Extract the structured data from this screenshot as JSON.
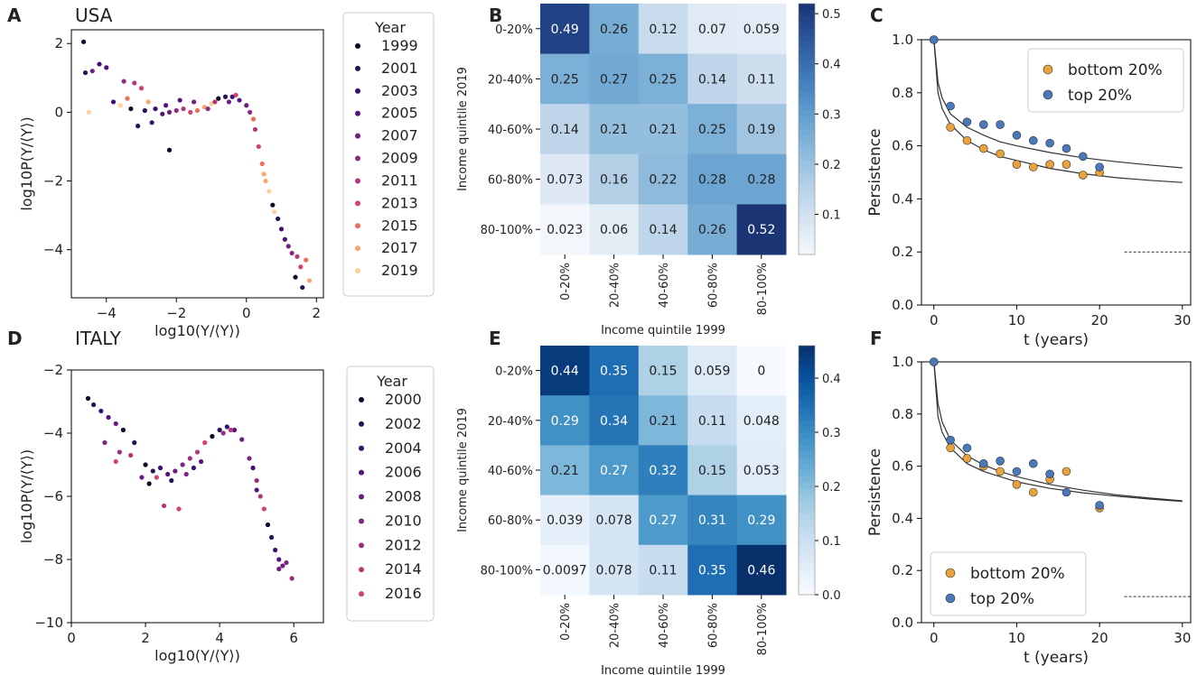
{
  "figure": {
    "panel_letters": [
      "A",
      "B",
      "C",
      "D",
      "E",
      "F"
    ]
  },
  "chart_data": [
    {
      "id": "A",
      "type": "scatter",
      "title": "USA",
      "xlabel": "log10(Y/⟨Y⟩)",
      "ylabel": "log10P(Y/⟨Y⟩)",
      "xlim": [
        -5,
        2.2
      ],
      "ylim": [
        -5.4,
        2.4
      ],
      "xticks": [
        -4,
        -2,
        0,
        2
      ],
      "yticks": [
        -4,
        -2,
        0,
        2
      ],
      "legend": {
        "title": "Year",
        "position": "right-outside",
        "entries": [
          {
            "label": "1999",
            "color": "#0d0829"
          },
          {
            "label": "2001",
            "color": "#251255"
          },
          {
            "label": "2003",
            "color": "#3b0f70"
          },
          {
            "label": "2005",
            "color": "#55137d"
          },
          {
            "label": "2007",
            "color": "#711f81"
          },
          {
            "label": "2009",
            "color": "#8c2981"
          },
          {
            "label": "2011",
            "color": "#b5367a"
          },
          {
            "label": "2013",
            "color": "#d3436e"
          },
          {
            "label": "2015",
            "color": "#ef6e5b"
          },
          {
            "label": "2017",
            "color": "#f9a470"
          },
          {
            "label": "2019",
            "color": "#fcd29a"
          }
        ]
      },
      "series_points": [
        [
          -4.65,
          2.05
        ],
        [
          -4.6,
          1.15
        ],
        [
          -4.2,
          1.4
        ],
        [
          -4.0,
          1.3
        ],
        [
          -4.4,
          1.2
        ],
        [
          -3.5,
          0.9
        ],
        [
          -3.2,
          0.85
        ],
        [
          -3.0,
          0.7
        ],
        [
          -3.4,
          0.4
        ],
        [
          -2.8,
          0.3
        ],
        [
          -3.6,
          0.2
        ],
        [
          -3.3,
          0.1
        ],
        [
          -2.9,
          0.05
        ],
        [
          -2.6,
          0.1
        ],
        [
          -2.4,
          -0.05
        ],
        [
          -2.2,
          0.0
        ],
        [
          -2.0,
          0.05
        ],
        [
          -1.8,
          0.1
        ],
        [
          -1.6,
          0.0
        ],
        [
          -1.4,
          0.05
        ],
        [
          -1.2,
          0.15
        ],
        [
          -1.0,
          0.25
        ],
        [
          -0.8,
          0.4
        ],
        [
          -0.6,
          0.45
        ],
        [
          -0.4,
          0.45
        ],
        [
          -0.2,
          0.35
        ],
        [
          0.0,
          0.2
        ],
        [
          0.1,
          0.0
        ],
        [
          0.25,
          -0.5
        ],
        [
          0.35,
          -1.0
        ],
        [
          0.45,
          -1.5
        ],
        [
          0.55,
          -2.0
        ],
        [
          0.65,
          -2.3
        ],
        [
          0.75,
          -2.7
        ],
        [
          0.9,
          -3.1
        ],
        [
          1.0,
          -3.4
        ],
        [
          1.1,
          -3.7
        ],
        [
          1.2,
          -3.9
        ],
        [
          1.3,
          -4.1
        ],
        [
          1.45,
          -4.2
        ],
        [
          1.55,
          -4.5
        ],
        [
          1.7,
          -4.3
        ],
        [
          1.8,
          -4.9
        ],
        [
          -4.5,
          0.0
        ],
        [
          -2.2,
          -1.1
        ],
        [
          -3.1,
          -0.4
        ],
        [
          -2.7,
          -0.3
        ],
        [
          -2.3,
          0.2
        ],
        [
          -1.5,
          0.3
        ],
        [
          -1.1,
          0.1
        ],
        [
          -0.9,
          0.3
        ],
        [
          -0.3,
          0.5
        ],
        [
          0.2,
          -0.2
        ],
        [
          0.5,
          -1.8
        ],
        [
          0.8,
          -2.9
        ],
        [
          1.4,
          -4.8
        ],
        [
          1.6,
          -5.1
        ],
        [
          -3.8,
          0.3
        ],
        [
          -1.9,
          0.35
        ],
        [
          -0.5,
          0.3
        ]
      ]
    },
    {
      "id": "B",
      "type": "heatmap",
      "xlabel": "Income quintile 1999",
      "ylabel": "Income quintile 2019",
      "categories": [
        "0-20%",
        "20-40%",
        "40-60%",
        "60-80%",
        "80-100%"
      ],
      "values": [
        [
          "0.49",
          "0.26",
          "0.12",
          "0.07",
          "0.059"
        ],
        [
          "0.25",
          "0.27",
          "0.25",
          "0.14",
          "0.11"
        ],
        [
          "0.14",
          "0.21",
          "0.21",
          "0.25",
          "0.19"
        ],
        [
          "0.073",
          "0.16",
          "0.22",
          "0.28",
          "0.28"
        ],
        [
          "0.023",
          "0.06",
          "0.14",
          "0.26",
          "0.52"
        ]
      ],
      "colorbar": {
        "min": 0.02,
        "max": 0.52,
        "ticks": [
          "0.1",
          "0.2",
          "0.3",
          "0.4",
          "0.5"
        ],
        "tick_values": [
          0.1,
          0.2,
          0.3,
          0.4,
          0.5
        ]
      }
    },
    {
      "id": "C",
      "type": "scatter",
      "xlabel": "t (years)",
      "ylabel": "Persistence",
      "xlim": [
        -1.5,
        31
      ],
      "ylim": [
        0,
        1.0
      ],
      "xticks": [
        "0",
        "10",
        "20",
        "30"
      ],
      "xtick_values": [
        0,
        10,
        20,
        30
      ],
      "yticks": [
        "0.0",
        "0.2",
        "0.4",
        "0.6",
        "0.8",
        "1.0"
      ],
      "ytick_values": [
        0,
        0.2,
        0.4,
        0.6,
        0.8,
        1.0
      ],
      "legend": {
        "position": "top-right",
        "entries": [
          {
            "label": "bottom 20%",
            "color": "#e8a33d"
          },
          {
            "label": "top 20%",
            "color": "#4a78b8"
          }
        ]
      },
      "series": [
        {
          "name": "bottom 20%",
          "x": [
            0,
            2,
            4,
            6,
            8,
            10,
            12,
            14,
            16,
            18,
            20
          ],
          "y": [
            1.0,
            0.67,
            0.62,
            0.59,
            0.57,
            0.53,
            0.52,
            0.53,
            0.53,
            0.49,
            0.5
          ]
        },
        {
          "name": "top 20%",
          "x": [
            0,
            2,
            4,
            6,
            8,
            10,
            12,
            14,
            16,
            18,
            20
          ],
          "y": [
            1.0,
            0.75,
            0.69,
            0.68,
            0.68,
            0.64,
            0.62,
            0.61,
            0.59,
            0.56,
            0.52
          ]
        }
      ],
      "fit_curves": [
        {
          "name": "fit bottom",
          "x": [
            0,
            0.5,
            1,
            2,
            4,
            6,
            8,
            10,
            14,
            18,
            22,
            26,
            30
          ],
          "y": [
            1.0,
            0.8,
            0.74,
            0.68,
            0.62,
            0.585,
            0.56,
            0.545,
            0.515,
            0.495,
            0.48,
            0.47,
            0.462
          ]
        },
        {
          "name": "fit top",
          "x": [
            0,
            0.5,
            1,
            2,
            4,
            6,
            8,
            10,
            14,
            18,
            22,
            26,
            30
          ],
          "y": [
            1.0,
            0.84,
            0.78,
            0.72,
            0.67,
            0.64,
            0.615,
            0.6,
            0.575,
            0.555,
            0.54,
            0.528,
            0.517
          ]
        }
      ],
      "baseline": {
        "y": 0.2,
        "x_from": 23,
        "x_to": 31
      }
    },
    {
      "id": "D",
      "type": "scatter",
      "title": "ITALY",
      "xlabel": "log10(Y/⟨Y⟩)",
      "ylabel": "log10P(Y/⟨Y⟩)",
      "xlim": [
        0,
        6.8
      ],
      "ylim": [
        -10,
        -2
      ],
      "xticks": [
        0,
        2,
        4,
        6
      ],
      "yticks": [
        -10,
        -8,
        -6,
        -4,
        -2
      ],
      "legend": {
        "title": "Year",
        "position": "right-outside",
        "entries": [
          {
            "label": "2000",
            "color": "#0d0829"
          },
          {
            "label": "2002",
            "color": "#251255"
          },
          {
            "label": "2004",
            "color": "#3b0f70"
          },
          {
            "label": "2006",
            "color": "#55137d"
          },
          {
            "label": "2008",
            "color": "#6a1c81"
          },
          {
            "label": "2010",
            "color": "#7d2482"
          },
          {
            "label": "2012",
            "color": "#9c2e7f"
          },
          {
            "label": "2014",
            "color": "#b7377a"
          },
          {
            "label": "2016",
            "color": "#d3436e"
          }
        ]
      },
      "series_points": [
        [
          0.45,
          -2.9
        ],
        [
          0.6,
          -3.1
        ],
        [
          0.8,
          -3.3
        ],
        [
          1.0,
          -3.5
        ],
        [
          1.2,
          -3.7
        ],
        [
          0.9,
          -4.3
        ],
        [
          1.3,
          -4.6
        ],
        [
          1.6,
          -4.7
        ],
        [
          1.2,
          -4.9
        ],
        [
          2.0,
          -5.0
        ],
        [
          2.2,
          -5.2
        ],
        [
          2.4,
          -5.1
        ],
        [
          2.6,
          -5.3
        ],
        [
          2.8,
          -5.2
        ],
        [
          3.0,
          -5.0
        ],
        [
          3.2,
          -4.8
        ],
        [
          3.4,
          -4.6
        ],
        [
          3.6,
          -4.3
        ],
        [
          3.8,
          -4.1
        ],
        [
          4.0,
          -3.9
        ],
        [
          4.2,
          -3.8
        ],
        [
          4.4,
          -3.9
        ],
        [
          4.6,
          -4.2
        ],
        [
          4.8,
          -4.8
        ],
        [
          5.0,
          -5.5
        ],
        [
          5.1,
          -6.0
        ],
        [
          5.2,
          -6.4
        ],
        [
          5.3,
          -6.9
        ],
        [
          5.4,
          -7.3
        ],
        [
          5.5,
          -7.7
        ],
        [
          5.6,
          -8.0
        ],
        [
          5.7,
          -8.2
        ],
        [
          5.8,
          -8.1
        ],
        [
          5.95,
          -8.6
        ],
        [
          2.5,
          -6.3
        ],
        [
          2.9,
          -6.4
        ],
        [
          2.1,
          -5.6
        ],
        [
          2.7,
          -5.5
        ],
        [
          3.3,
          -5.1
        ],
        [
          3.5,
          -4.9
        ],
        [
          1.9,
          -5.4
        ],
        [
          3.1,
          -5.3
        ],
        [
          4.1,
          -4.0
        ],
        [
          4.3,
          -3.9
        ],
        [
          2.3,
          -5.4
        ],
        [
          1.4,
          -3.9
        ],
        [
          1.7,
          -4.3
        ],
        [
          4.9,
          -5.1
        ],
        [
          5.0,
          -5.8
        ],
        [
          5.6,
          -8.3
        ]
      ]
    },
    {
      "id": "E",
      "type": "heatmap",
      "xlabel": "Income quintile 1999",
      "ylabel": "Income quintile 2019",
      "categories": [
        "0-20%",
        "20-40%",
        "40-60%",
        "60-80%",
        "80-100%"
      ],
      "values": [
        [
          "0.44",
          "0.35",
          "0.15",
          "0.059",
          "0"
        ],
        [
          "0.29",
          "0.34",
          "0.21",
          "0.11",
          "0.048"
        ],
        [
          "0.21",
          "0.27",
          "0.32",
          "0.15",
          "0.053"
        ],
        [
          "0.039",
          "0.078",
          "0.27",
          "0.31",
          "0.29"
        ],
        [
          "0.0097",
          "0.078",
          "0.11",
          "0.35",
          "0.46"
        ]
      ],
      "colorbar": {
        "min": 0.0,
        "max": 0.46,
        "ticks": [
          "0.0",
          "0.1",
          "0.2",
          "0.3",
          "0.4"
        ],
        "tick_values": [
          0.0,
          0.1,
          0.2,
          0.3,
          0.4
        ]
      }
    },
    {
      "id": "F",
      "type": "scatter",
      "xlabel": "t (years)",
      "ylabel": "Persistence",
      "xlim": [
        -1.5,
        31
      ],
      "ylim": [
        0,
        1.0
      ],
      "xticks": [
        "0",
        "10",
        "20",
        "30"
      ],
      "xtick_values": [
        0,
        10,
        20,
        30
      ],
      "yticks": [
        "0.0",
        "0.2",
        "0.4",
        "0.6",
        "0.8",
        "1.0"
      ],
      "ytick_values": [
        0,
        0.2,
        0.4,
        0.6,
        0.8,
        1.0
      ],
      "legend": {
        "position": "bottom-left",
        "entries": [
          {
            "label": "bottom 20%",
            "color": "#e8a33d"
          },
          {
            "label": "top 20%",
            "color": "#4a78b8"
          }
        ]
      },
      "series": [
        {
          "name": "bottom 20%",
          "x": [
            0,
            2,
            4,
            6,
            8,
            10,
            12,
            14,
            16,
            20
          ],
          "y": [
            1.0,
            0.67,
            0.63,
            0.6,
            0.58,
            0.53,
            0.5,
            0.55,
            0.58,
            0.44
          ]
        },
        {
          "name": "top 20%",
          "x": [
            0,
            2,
            4,
            6,
            8,
            10,
            12,
            14,
            16,
            20
          ],
          "y": [
            1.0,
            0.7,
            0.67,
            0.61,
            0.62,
            0.58,
            0.61,
            0.57,
            0.5,
            0.45
          ]
        }
      ],
      "fit_curves": [
        {
          "name": "fit bottom",
          "x": [
            0,
            0.5,
            1,
            2,
            4,
            6,
            8,
            10,
            14,
            18,
            22,
            26,
            30
          ],
          "y": [
            1.0,
            0.79,
            0.73,
            0.67,
            0.61,
            0.58,
            0.56,
            0.54,
            0.515,
            0.498,
            0.485,
            0.474,
            0.465
          ]
        },
        {
          "name": "fit top",
          "x": [
            0,
            0.5,
            1,
            2,
            4,
            6,
            8,
            10,
            14,
            18,
            22,
            26,
            30
          ],
          "y": [
            1.0,
            0.84,
            0.77,
            0.7,
            0.64,
            0.605,
            0.58,
            0.56,
            0.53,
            0.508,
            0.49,
            0.478,
            0.467
          ]
        }
      ],
      "baseline": {
        "y": 0.1,
        "x_from": 23,
        "x_to": 31
      }
    }
  ]
}
